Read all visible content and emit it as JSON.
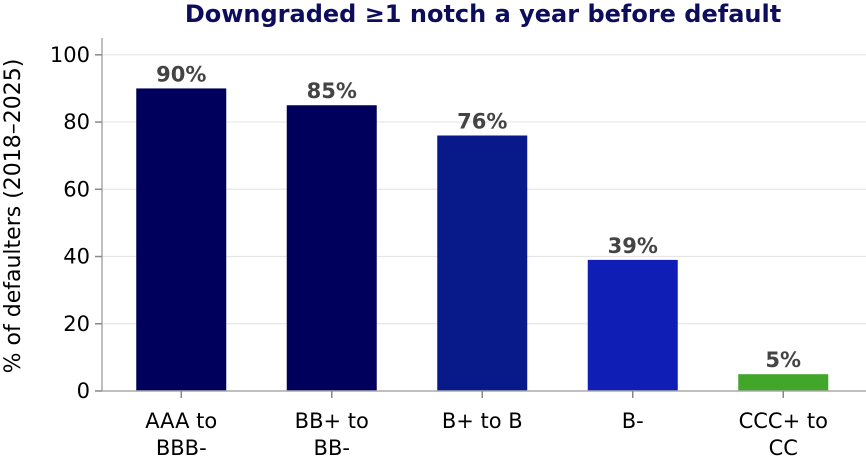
{
  "chart_data": {
    "type": "bar",
    "title": "Downgraded ≥1 notch a year before default",
    "xlabel": "",
    "ylabel": "% of defaulters (2018–2025)",
    "categories": [
      [
        "AAA to",
        "BBB-"
      ],
      [
        "BB+ to",
        "BB-"
      ],
      [
        "B+ to B"
      ],
      [
        "B-"
      ],
      [
        "CCC+ to",
        "CC"
      ]
    ],
    "values": [
      90,
      85,
      76,
      39,
      5
    ],
    "data_labels": [
      "90%",
      "85%",
      "76%",
      "39%",
      "5%"
    ],
    "bar_colors": [
      "#00005c",
      "#00005c",
      "#081a8a",
      "#0f1fb5",
      "#41a62a"
    ],
    "ylim": [
      0,
      105
    ],
    "yticks": [
      0,
      20,
      40,
      60,
      80,
      100
    ],
    "ytick_labels": [
      "0",
      "20",
      "40",
      "60",
      "80",
      "100"
    ],
    "grid": true,
    "legend": "none"
  }
}
